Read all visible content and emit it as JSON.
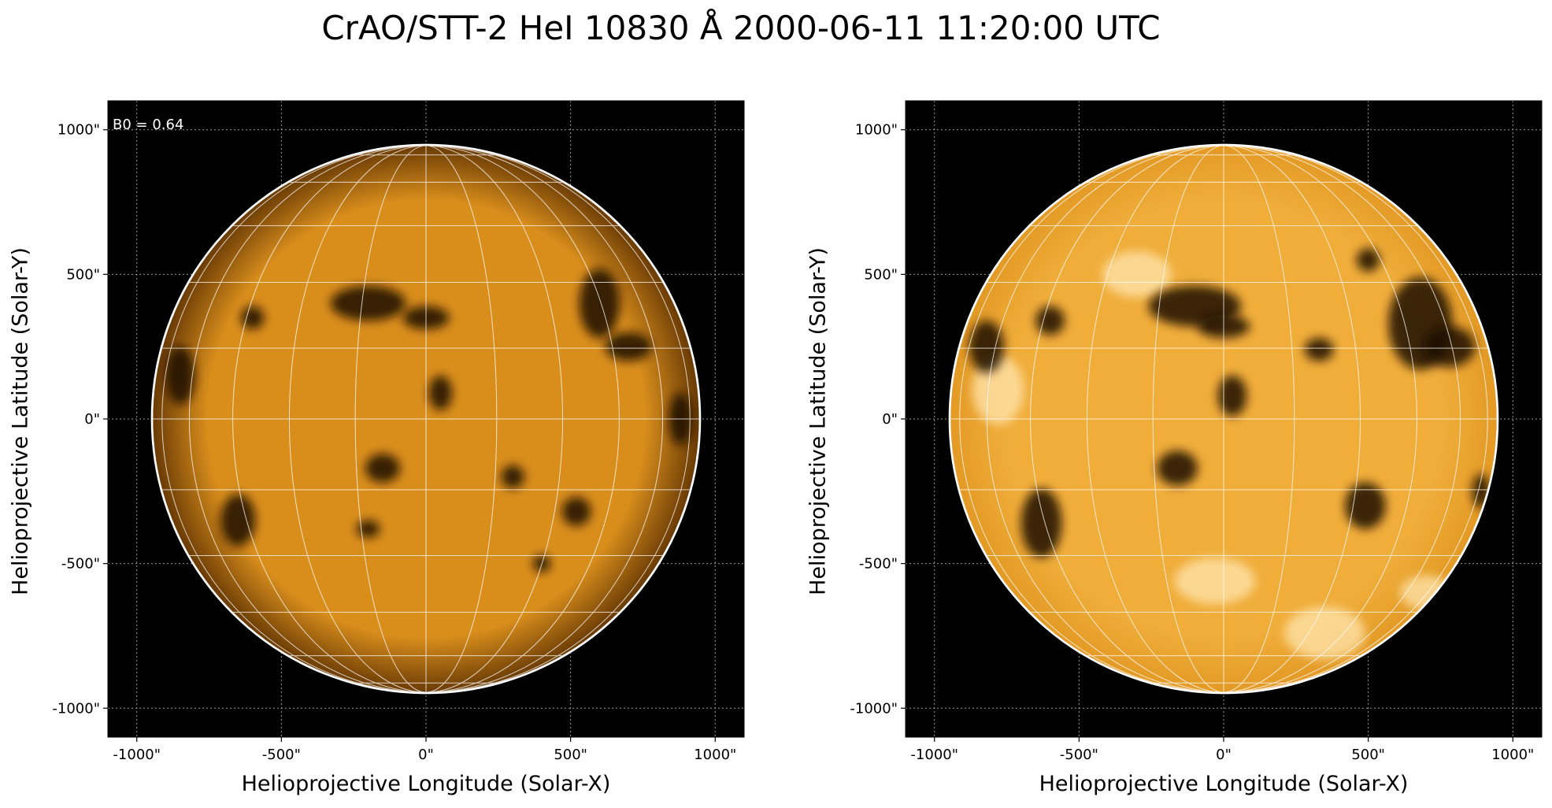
{
  "figure": {
    "title": "CrAO/STT-2 HeI 10830 Å 2000-06-11 11:20:00 UTC"
  },
  "panels": [
    {
      "xlabel": "Helioprojective Longitude (Solar-X)",
      "ylabel": "Helioprojective Latitude (Solar-Y)",
      "annotation": "B0 = 0.64",
      "xticks": [
        {
          "v": -1000,
          "l": "-1000\""
        },
        {
          "v": -500,
          "l": "-500\""
        },
        {
          "v": 0,
          "l": "0\""
        },
        {
          "v": 500,
          "l": "500\""
        },
        {
          "v": 1000,
          "l": "1000\""
        }
      ],
      "yticks": [
        {
          "v": 1000,
          "l": "1000\""
        },
        {
          "v": 500,
          "l": "500\""
        },
        {
          "v": 0,
          "l": "0\""
        },
        {
          "v": -500,
          "l": "-500\""
        },
        {
          "v": -1000,
          "l": "-1000\""
        }
      ],
      "solar_radius_arcsec": 945,
      "xlim": [
        -1100,
        1100
      ],
      "ylim": [
        -1100,
        1100
      ],
      "colors": {
        "disk_center": "#d98e1c",
        "disk_limb": "#6a3b05",
        "background": "#000000",
        "grid": "#ffffff"
      },
      "features": [
        {
          "x": -200,
          "y": 400,
          "w": 130,
          "h": 60
        },
        {
          "x": 0,
          "y": 350,
          "w": 80,
          "h": 40
        },
        {
          "x": 600,
          "y": 400,
          "w": 70,
          "h": 120
        },
        {
          "x": 700,
          "y": 250,
          "w": 80,
          "h": 50
        },
        {
          "x": -600,
          "y": 350,
          "w": 40,
          "h": 40
        },
        {
          "x": 50,
          "y": 90,
          "w": 40,
          "h": 60
        },
        {
          "x": -150,
          "y": -170,
          "w": 60,
          "h": 50
        },
        {
          "x": -650,
          "y": -350,
          "w": 60,
          "h": 90
        },
        {
          "x": -200,
          "y": -380,
          "w": 40,
          "h": 30
        },
        {
          "x": 520,
          "y": -320,
          "w": 50,
          "h": 50
        },
        {
          "x": 300,
          "y": -200,
          "w": 40,
          "h": 40
        },
        {
          "x": 880,
          "y": 0,
          "w": 40,
          "h": 90
        },
        {
          "x": -850,
          "y": 150,
          "w": 50,
          "h": 100
        },
        {
          "x": 400,
          "y": -500,
          "w": 30,
          "h": 30
        }
      ],
      "brights": []
    },
    {
      "xlabel": "Helioprojective Longitude (Solar-X)",
      "ylabel": "Helioprojective Latitude (Solar-Y)",
      "annotation": "",
      "xticks": [
        {
          "v": -1000,
          "l": "-1000\""
        },
        {
          "v": -500,
          "l": "-500\""
        },
        {
          "v": 0,
          "l": "0\""
        },
        {
          "v": 500,
          "l": "500\""
        },
        {
          "v": 1000,
          "l": "1000\""
        }
      ],
      "yticks": [
        {
          "v": 1000,
          "l": "1000\""
        },
        {
          "v": 500,
          "l": "500\""
        },
        {
          "v": 0,
          "l": "0\""
        },
        {
          "v": -500,
          "l": "-500\""
        },
        {
          "v": -1000,
          "l": "-1000\""
        }
      ],
      "solar_radius_arcsec": 945,
      "xlim": [
        -1100,
        1100
      ],
      "ylim": [
        -1100,
        1100
      ],
      "colors": {
        "disk_center": "#f0ad3a",
        "disk_limb": "#e39a25",
        "background": "#000000",
        "grid": "#ffffff"
      },
      "features": [
        {
          "x": -100,
          "y": 390,
          "w": 160,
          "h": 70
        },
        {
          "x": 0,
          "y": 320,
          "w": 90,
          "h": 40
        },
        {
          "x": 680,
          "y": 330,
          "w": 110,
          "h": 160
        },
        {
          "x": 780,
          "y": 250,
          "w": 90,
          "h": 70
        },
        {
          "x": -600,
          "y": 340,
          "w": 50,
          "h": 50
        },
        {
          "x": 30,
          "y": 80,
          "w": 50,
          "h": 70
        },
        {
          "x": -160,
          "y": -170,
          "w": 70,
          "h": 60
        },
        {
          "x": -630,
          "y": -360,
          "w": 70,
          "h": 120
        },
        {
          "x": 490,
          "y": -300,
          "w": 70,
          "h": 80
        },
        {
          "x": 330,
          "y": 240,
          "w": 50,
          "h": 40
        },
        {
          "x": -820,
          "y": 250,
          "w": 60,
          "h": 90
        },
        {
          "x": 890,
          "y": -250,
          "w": 30,
          "h": 60
        },
        {
          "x": 500,
          "y": 550,
          "w": 40,
          "h": 40
        }
      ],
      "brights": [
        {
          "x": -30,
          "y": -560,
          "w": 140,
          "h": 80
        },
        {
          "x": 350,
          "y": -740,
          "w": 140,
          "h": 90
        },
        {
          "x": -300,
          "y": 500,
          "w": 120,
          "h": 80
        },
        {
          "x": -780,
          "y": 100,
          "w": 90,
          "h": 120
        },
        {
          "x": 700,
          "y": -600,
          "w": 90,
          "h": 60
        }
      ]
    }
  ]
}
